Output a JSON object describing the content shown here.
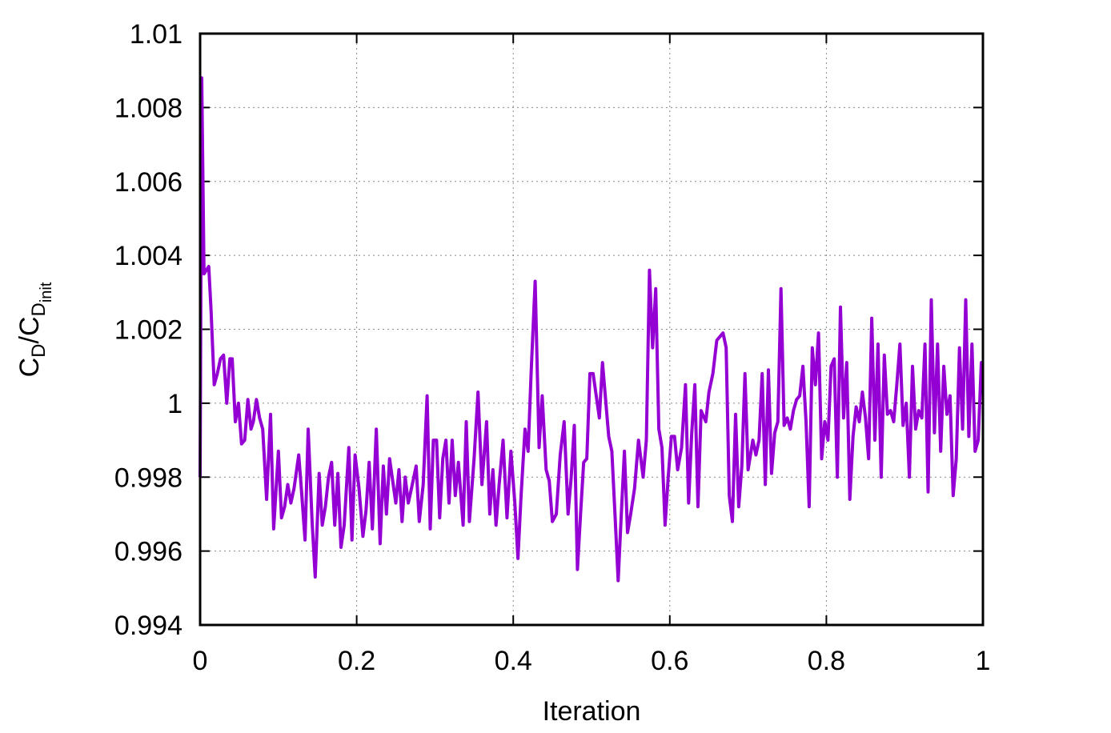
{
  "chart_data": {
    "type": "line",
    "xlabel": "Iteration",
    "ylabel": [
      "C",
      "D",
      "/C",
      "D",
      "init"
    ],
    "xlim": [
      0,
      1
    ],
    "xticks": [
      0,
      0.2,
      0.4,
      0.6,
      0.8,
      1
    ],
    "ylim": [
      0.994,
      1.01
    ],
    "yticks": [
      0.994,
      0.996,
      0.998,
      1,
      1.002,
      1.004,
      1.006,
      1.008,
      1.01
    ],
    "grid": true,
    "series": [
      {
        "color": "#9400d3",
        "x": [
          0,
          0.002,
          0.005,
          0.008,
          0.011,
          0.014,
          0.018,
          0.022,
          0.026,
          0.03,
          0.034,
          0.038,
          0.041,
          0.045,
          0.049,
          0.053,
          0.057,
          0.061,
          0.065,
          0.068,
          0.072,
          0.076,
          0.08,
          0.085,
          0.09,
          0.094,
          0.1,
          0.104,
          0.108,
          0.112,
          0.116,
          0.12,
          0.126,
          0.13,
          0.134,
          0.138,
          0.143,
          0.147,
          0.152,
          0.156,
          0.16,
          0.164,
          0.168,
          0.172,
          0.176,
          0.18,
          0.184,
          0.19,
          0.194,
          0.198,
          0.203,
          0.208,
          0.212,
          0.216,
          0.22,
          0.225,
          0.23,
          0.234,
          0.238,
          0.242,
          0.246,
          0.25,
          0.254,
          0.258,
          0.262,
          0.266,
          0.27,
          0.276,
          0.28,
          0.285,
          0.29,
          0.294,
          0.298,
          0.302,
          0.306,
          0.31,
          0.314,
          0.318,
          0.322,
          0.326,
          0.33,
          0.336,
          0.34,
          0.344,
          0.35,
          0.355,
          0.36,
          0.366,
          0.37,
          0.374,
          0.378,
          0.382,
          0.387,
          0.392,
          0.397,
          0.402,
          0.406,
          0.41,
          0.415,
          0.419,
          0.423,
          0.428,
          0.433,
          0.437,
          0.442,
          0.446,
          0.45,
          0.455,
          0.46,
          0.465,
          0.47,
          0.474,
          0.478,
          0.482,
          0.486,
          0.49,
          0.494,
          0.498,
          0.502,
          0.506,
          0.51,
          0.514,
          0.518,
          0.522,
          0.526,
          0.53,
          0.534,
          0.538,
          0.542,
          0.546,
          0.55,
          0.555,
          0.56,
          0.566,
          0.57,
          0.574,
          0.578,
          0.582,
          0.586,
          0.59,
          0.594,
          0.598,
          0.602,
          0.606,
          0.61,
          0.615,
          0.62,
          0.624,
          0.628,
          0.632,
          0.636,
          0.64,
          0.646,
          0.65,
          0.655,
          0.66,
          0.664,
          0.668,
          0.672,
          0.676,
          0.68,
          0.684,
          0.688,
          0.692,
          0.696,
          0.7,
          0.706,
          0.71,
          0.714,
          0.718,
          0.722,
          0.726,
          0.73,
          0.734,
          0.738,
          0.742,
          0.746,
          0.75,
          0.754,
          0.758,
          0.762,
          0.766,
          0.77,
          0.774,
          0.778,
          0.782,
          0.786,
          0.79,
          0.794,
          0.798,
          0.802,
          0.806,
          0.81,
          0.814,
          0.818,
          0.822,
          0.826,
          0.83,
          0.834,
          0.838,
          0.842,
          0.846,
          0.85,
          0.854,
          0.858,
          0.862,
          0.866,
          0.87,
          0.874,
          0.878,
          0.882,
          0.886,
          0.89,
          0.894,
          0.898,
          0.902,
          0.906,
          0.91,
          0.914,
          0.918,
          0.922,
          0.926,
          0.93,
          0.934,
          0.938,
          0.942,
          0.946,
          0.95,
          0.954,
          0.958,
          0.962,
          0.966,
          0.97,
          0.974,
          0.978,
          0.982,
          0.986,
          0.99,
          0.994,
          0.998,
          1
        ],
        "values": [
          0.998,
          1.0088,
          1.0035,
          1.0036,
          1.0037,
          1.0025,
          1.0005,
          1.0008,
          1.0012,
          1.0013,
          1.0,
          1.0012,
          1.0012,
          0.9995,
          1.0,
          0.9989,
          0.999,
          1.0001,
          0.9993,
          0.9995,
          1.0001,
          0.9996,
          0.9993,
          0.9974,
          0.9997,
          0.9966,
          0.9987,
          0.9969,
          0.9972,
          0.9978,
          0.9973,
          0.9977,
          0.9986,
          0.9975,
          0.9963,
          0.9993,
          0.9968,
          0.9953,
          0.9981,
          0.9967,
          0.9972,
          0.998,
          0.9984,
          0.9967,
          0.9981,
          0.9961,
          0.9967,
          0.9988,
          0.9963,
          0.9986,
          0.9977,
          0.9964,
          0.9971,
          0.9984,
          0.9966,
          0.9993,
          0.9962,
          0.9983,
          0.997,
          0.9985,
          0.9979,
          0.9973,
          0.9982,
          0.9968,
          0.998,
          0.9973,
          0.9977,
          0.9983,
          0.9968,
          0.9978,
          1.0002,
          0.9966,
          0.999,
          0.999,
          0.9969,
          0.9985,
          0.999,
          0.9973,
          0.999,
          0.9975,
          0.9984,
          0.9967,
          0.9995,
          0.9968,
          0.9985,
          1.0003,
          0.9978,
          0.9995,
          0.997,
          0.9982,
          0.9967,
          0.9978,
          0.999,
          0.9969,
          0.9987,
          0.9973,
          0.9958,
          0.9975,
          0.9993,
          0.9987,
          1.0009,
          1.0033,
          0.9988,
          1.0002,
          0.9982,
          0.9979,
          0.9968,
          0.997,
          0.9986,
          0.9995,
          0.997,
          0.998,
          0.9994,
          0.9955,
          0.997,
          0.9984,
          0.9985,
          1.0008,
          1.0008,
          1.0002,
          0.9996,
          1.0011,
          1.0001,
          0.9991,
          0.9987,
          0.997,
          0.9952,
          0.997,
          0.9987,
          0.9965,
          0.997,
          0.9977,
          0.999,
          0.998,
          0.999,
          1.0036,
          1.0015,
          1.0031,
          0.9993,
          0.9988,
          0.9967,
          0.998,
          0.9991,
          0.9991,
          0.9982,
          0.9988,
          1.0005,
          0.9973,
          0.9992,
          1.0005,
          0.9972,
          0.9998,
          0.9995,
          1.0003,
          1.0008,
          1.0017,
          1.0018,
          1.0019,
          1.0015,
          0.9975,
          0.9968,
          0.9997,
          0.9972,
          0.9983,
          1.0008,
          0.9982,
          0.999,
          0.9986,
          0.999,
          1.0008,
          0.9978,
          1.0009,
          0.9981,
          0.9992,
          0.9995,
          1.0031,
          0.9994,
          0.9996,
          0.9993,
          0.9998,
          1.0001,
          1.0002,
          1.001,
          0.9995,
          0.9972,
          1.0015,
          1.0005,
          1.0019,
          0.9985,
          0.9995,
          0.999,
          1.001,
          1.0012,
          0.998,
          1.0026,
          0.9996,
          1.0011,
          0.9974,
          0.9991,
          0.9999,
          0.9995,
          1.0003,
          0.9996,
          0.9985,
          1.0023,
          0.999,
          1.0016,
          0.998,
          1.0013,
          0.9997,
          0.9998,
          0.9995,
          1.0005,
          1.0016,
          0.9994,
          1.0,
          0.998,
          1.001,
          0.9993,
          0.9998,
          0.9996,
          1.0016,
          0.9976,
          1.0028,
          0.9992,
          1.0016,
          0.9987,
          1.001,
          0.9997,
          1.0002,
          0.9975,
          0.9985,
          1.0015,
          0.9993,
          1.0028,
          0.9991,
          1.0016,
          0.9987,
          0.999,
          1.0011,
          1.0011
        ]
      }
    ]
  }
}
